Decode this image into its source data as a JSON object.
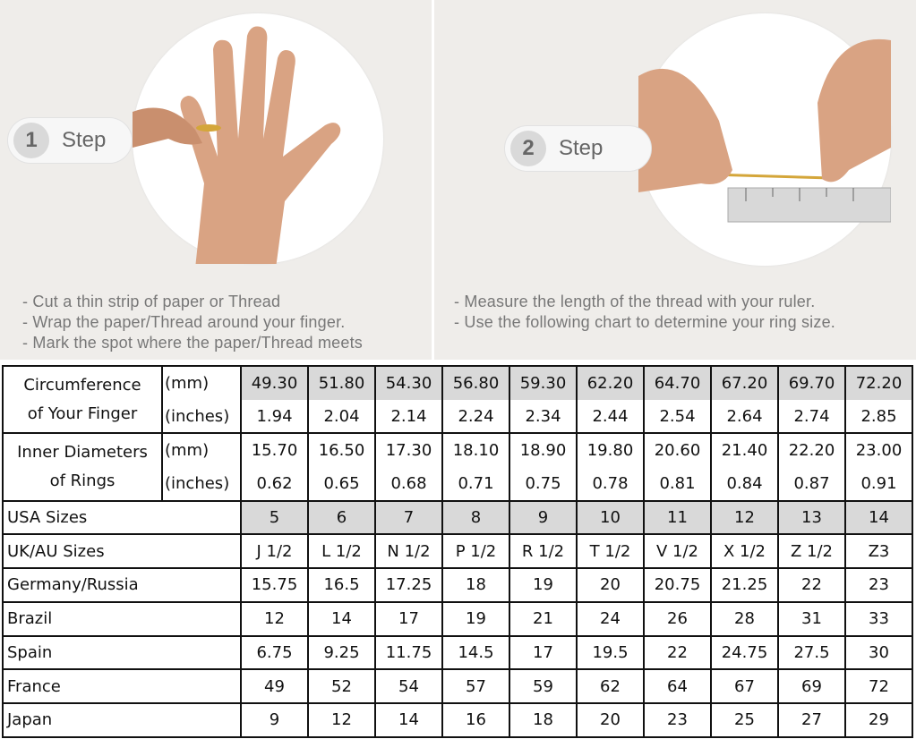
{
  "step1": {
    "number": "1",
    "label": "Step",
    "instructions": [
      "- Cut a thin strip of paper or Thread",
      "- Wrap the paper/Thread around your finger.",
      "- Mark the spot where the paper/Thread meets"
    ]
  },
  "step2": {
    "number": "2",
    "label": "Step",
    "instructions": [
      "- Measure the length of the thread with your ruler.",
      "- Use the following chart to determine your ring size."
    ]
  },
  "table": {
    "circumference": {
      "label_line1": "Circumference",
      "label_line2": "of Your Finger",
      "mm_unit": "(mm)",
      "in_unit": "(inches)",
      "mm": [
        "49.30",
        "51.80",
        "54.30",
        "56.80",
        "59.30",
        "62.20",
        "64.70",
        "67.20",
        "69.70",
        "72.20"
      ],
      "inches": [
        "1.94",
        "2.04",
        "2.14",
        "2.24",
        "2.34",
        "2.44",
        "2.54",
        "2.64",
        "2.74",
        "2.85"
      ]
    },
    "diameter": {
      "label_line1": "Inner Diameters",
      "label_line2": "of Rings",
      "mm_unit": "(mm)",
      "in_unit": "(inches)",
      "mm": [
        "15.70",
        "16.50",
        "17.30",
        "18.10",
        "18.90",
        "19.80",
        "20.60",
        "21.40",
        "22.20",
        "23.00"
      ],
      "inches": [
        "0.62",
        "0.65",
        "0.68",
        "0.71",
        "0.75",
        "0.78",
        "0.81",
        "0.84",
        "0.87",
        "0.91"
      ]
    },
    "rows": [
      {
        "label": "USA Sizes",
        "values": [
          "5",
          "6",
          "7",
          "8",
          "9",
          "10",
          "11",
          "12",
          "13",
          "14"
        ]
      },
      {
        "label": "UK/AU Sizes",
        "values": [
          "J 1/2",
          "L 1/2",
          "N 1/2",
          "P 1/2",
          "R 1/2",
          "T 1/2",
          "V 1/2",
          "X 1/2",
          "Z 1/2",
          "Z3"
        ]
      },
      {
        "label": "Germany/Russia",
        "values": [
          "15.75",
          "16.5",
          "17.25",
          "18",
          "19",
          "20",
          "20.75",
          "21.25",
          "22",
          "23"
        ]
      },
      {
        "label": "Brazil",
        "values": [
          "12",
          "14",
          "17",
          "19",
          "21",
          "24",
          "26",
          "28",
          "31",
          "33"
        ]
      },
      {
        "label": "Spain",
        "values": [
          "6.75",
          "9.25",
          "11.75",
          "14.5",
          "17",
          "19.5",
          "22",
          "24.75",
          "27.5",
          "30"
        ]
      },
      {
        "label": "France",
        "values": [
          "49",
          "52",
          "54",
          "57",
          "59",
          "62",
          "64",
          "67",
          "69",
          "72"
        ]
      },
      {
        "label": "Japan",
        "values": [
          "9",
          "12",
          "14",
          "16",
          "18",
          "20",
          "23",
          "25",
          "27",
          "29"
        ]
      }
    ]
  },
  "colors": {
    "panel_bg": "#efedea",
    "shaded_cell": "#d9d9d9",
    "skin": "#d9a383"
  }
}
